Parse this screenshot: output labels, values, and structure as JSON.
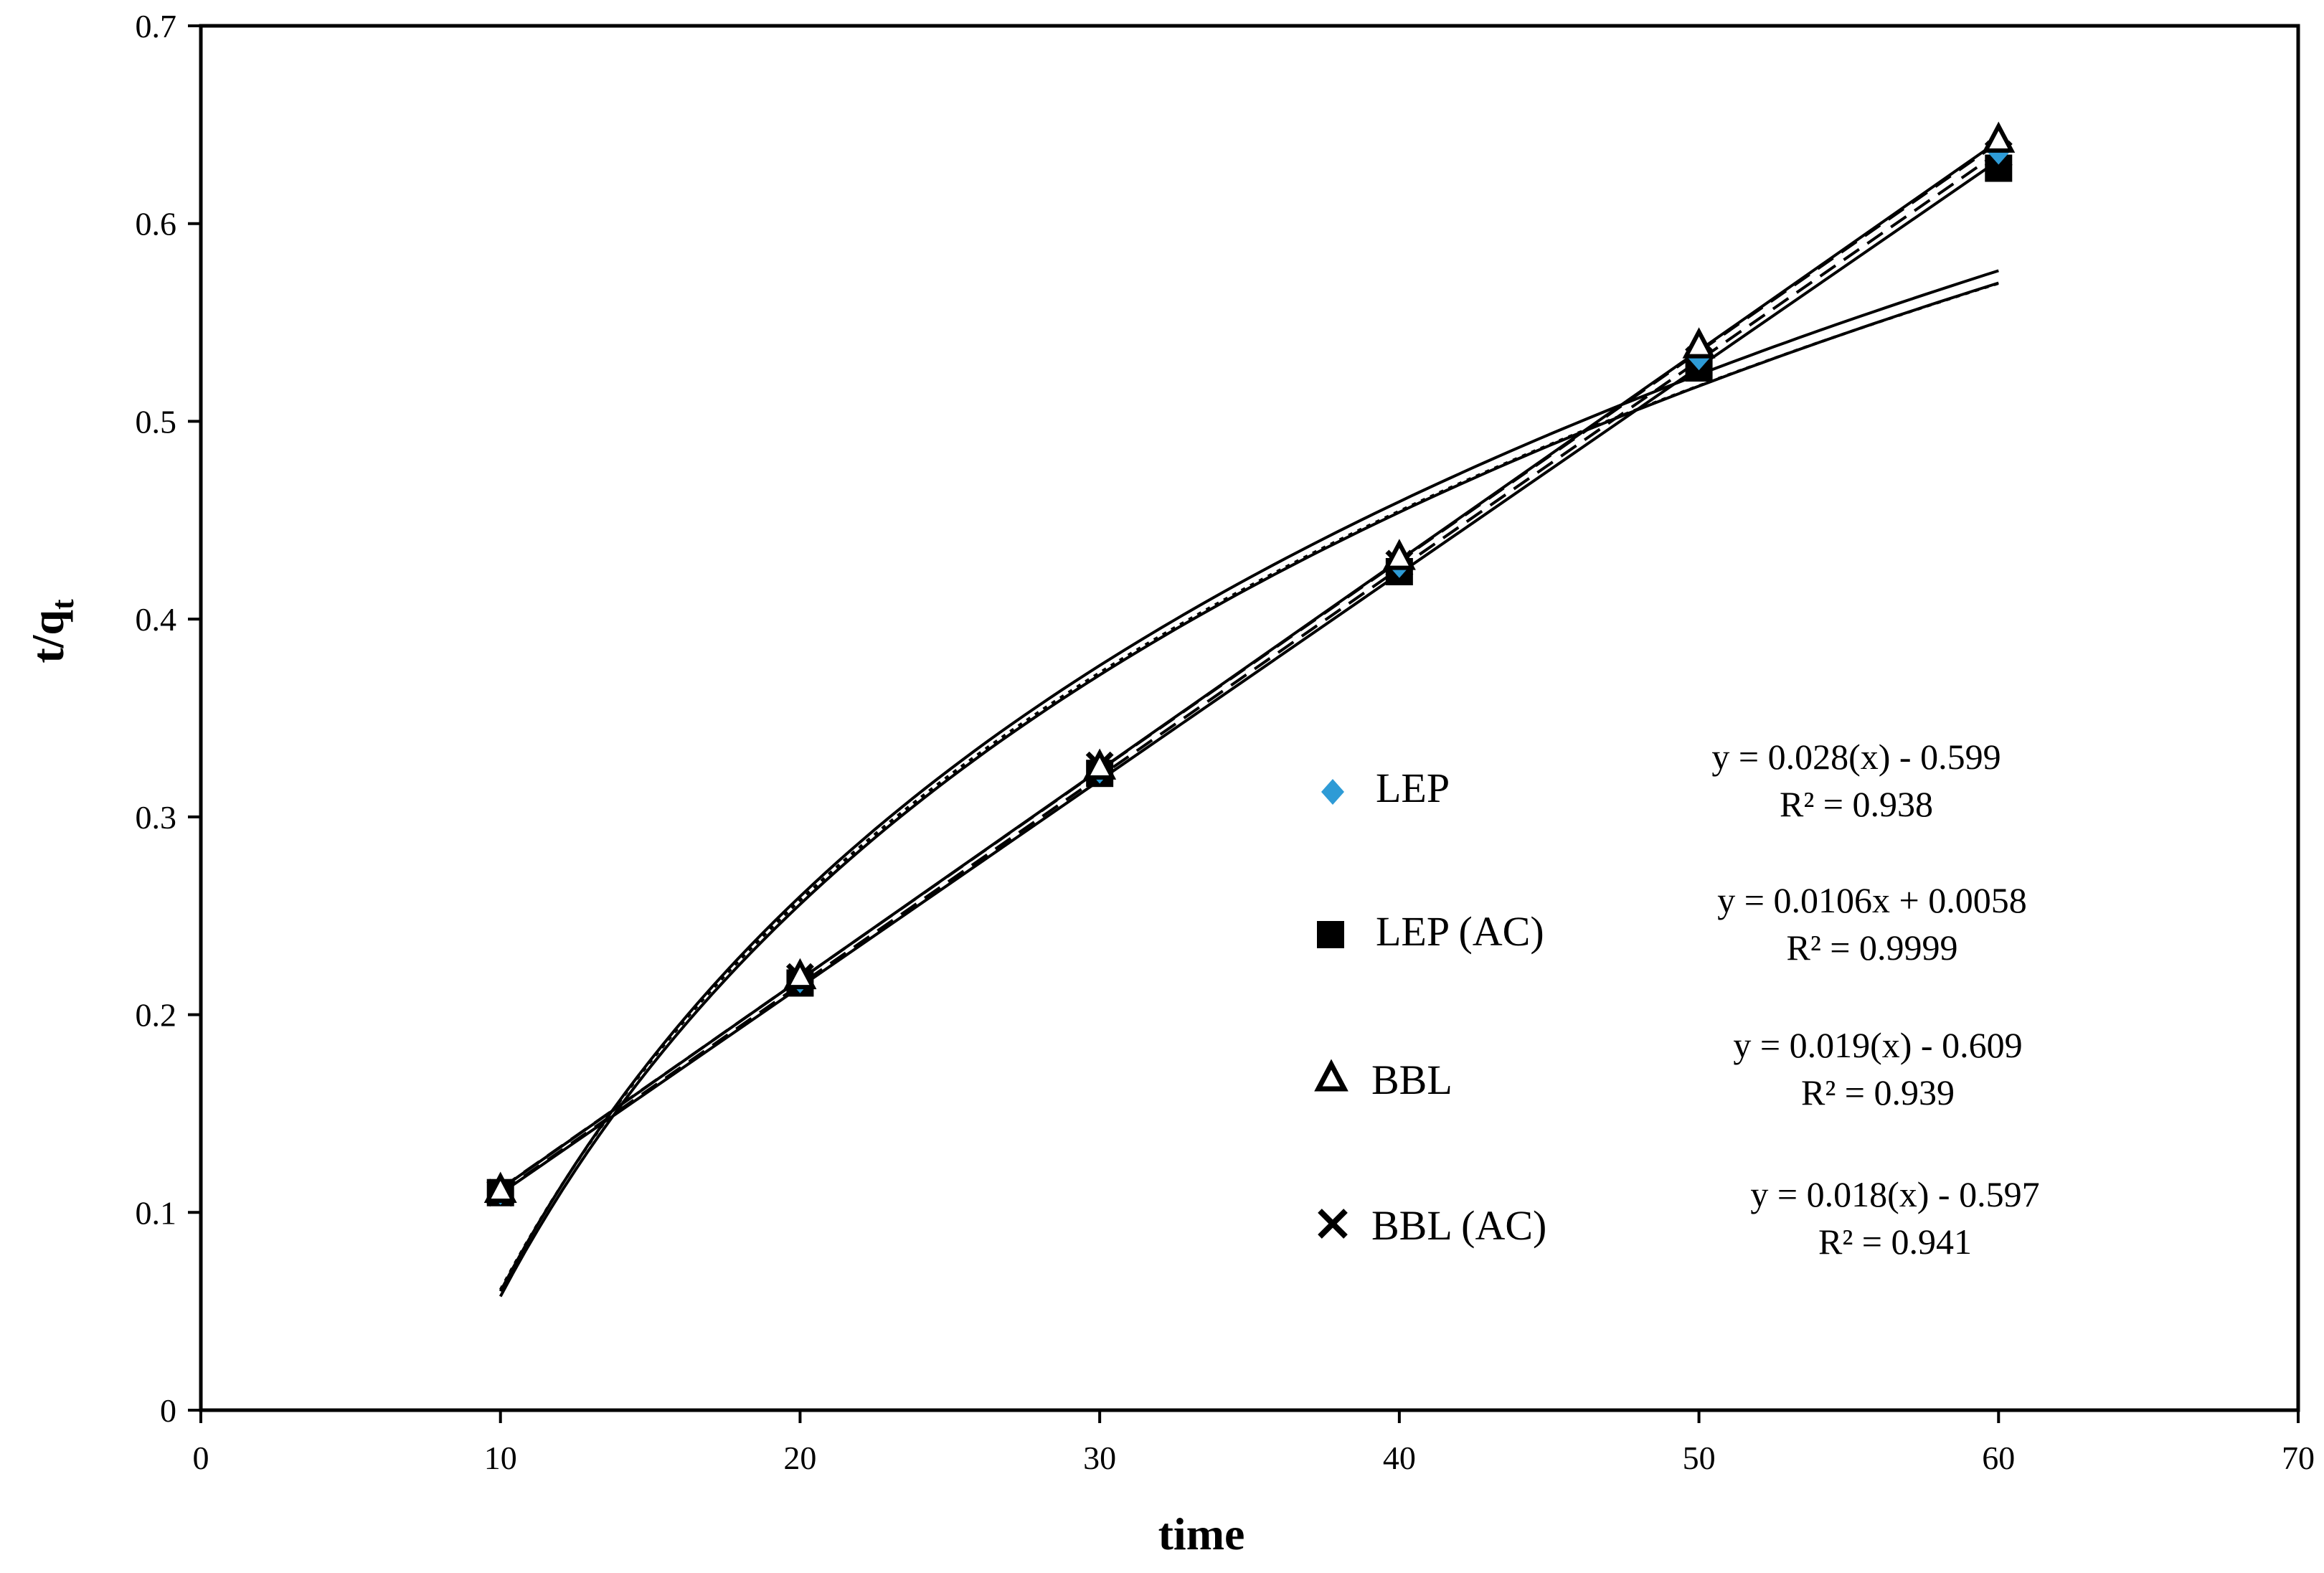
{
  "chart_data": {
    "type": "scatter",
    "title": "",
    "xlabel": "time",
    "ylabel": {
      "main": "t/q",
      "subscript": "t"
    },
    "xlim": [
      0,
      70
    ],
    "ylim": [
      0,
      0.7
    ],
    "x_ticks": [
      "0",
      "10",
      "20",
      "30",
      "40",
      "50",
      "60",
      "70"
    ],
    "y_ticks": [
      "0",
      "0.1",
      "0.2",
      "0.3",
      "0.4",
      "0.5",
      "0.6",
      "0.7"
    ],
    "grid": false,
    "legend_position": "center-right",
    "x": [
      10,
      20,
      30,
      40,
      50,
      60
    ],
    "series": [
      {
        "name": "LEP",
        "marker": "diamond",
        "color": "#2e9bd6",
        "values": [
          0.11,
          0.217,
          0.323,
          0.427,
          0.532,
          0.636
        ],
        "equation": "y = 0.028(x) - 0.599",
        "r2": "R² = 0.938"
      },
      {
        "name": "LEP (AC)",
        "marker": "square",
        "color": "#000000",
        "values": [
          0.11,
          0.216,
          0.322,
          0.424,
          0.527,
          0.628
        ],
        "equation": "y = 0.0106x + 0.0058",
        "r2": "R² = 0.9999"
      },
      {
        "name": "BBL",
        "marker": "triangle",
        "color": "#000000",
        "values": [
          0.111,
          0.219,
          0.325,
          0.431,
          0.538,
          0.642
        ],
        "equation": "y = 0.019(x) - 0.609",
        "r2": "R² = 0.939"
      },
      {
        "name": "BBL (AC)",
        "marker": "x",
        "color": "#000000",
        "values": [
          0.11,
          0.219,
          0.326,
          0.428,
          0.531,
          0.635
        ],
        "equation": "y = 0.018(x) - 0.597",
        "r2": "R² = 0.941"
      }
    ],
    "trendlines": [
      {
        "name": "trend-linear-lep-ac",
        "kind": "linear",
        "style": "solid",
        "x": [
          10,
          60
        ],
        "y": [
          0.1118,
          0.6418
        ]
      },
      {
        "name": "trend-linear-lep",
        "kind": "linear",
        "style": "solid",
        "x": [
          10,
          60
        ],
        "y": [
          0.1095,
          0.632
        ]
      },
      {
        "name": "trend-linear-bbl",
        "kind": "linear",
        "style": "dashed",
        "x": [
          10,
          60
        ],
        "y": [
          0.112,
          0.641
        ]
      },
      {
        "name": "trend-linear-bbl-ac",
        "kind": "linear",
        "style": "dashed",
        "x": [
          10,
          60
        ],
        "y": [
          0.11,
          0.636
        ]
      },
      {
        "name": "trend-log-a",
        "kind": "log",
        "style": "solid",
        "a": 0.288,
        "b": -0.603,
        "x": [
          10,
          60
        ]
      },
      {
        "name": "trend-log-b",
        "kind": "log",
        "style": "dotted",
        "a": 0.284,
        "b": -0.593,
        "x": [
          10,
          60
        ]
      },
      {
        "name": "trend-log-c",
        "kind": "log",
        "style": "solid",
        "a": 0.286,
        "b": -0.601,
        "x": [
          10,
          60
        ]
      }
    ]
  }
}
